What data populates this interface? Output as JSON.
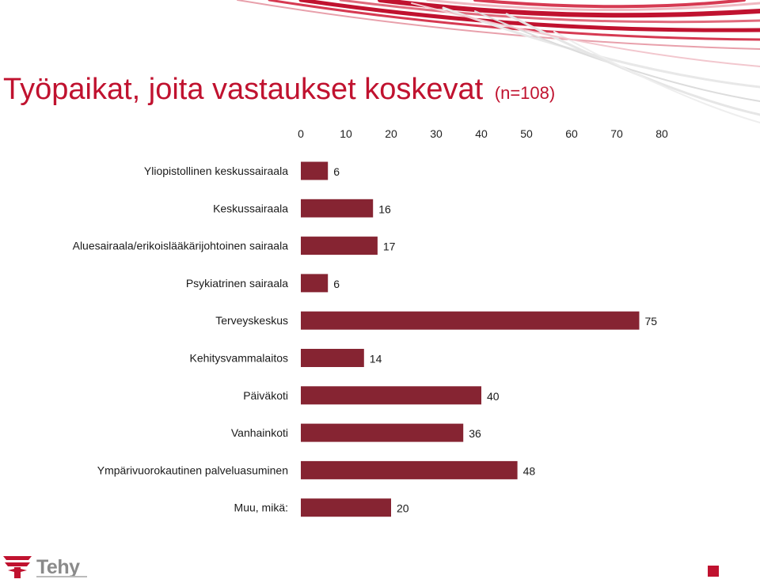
{
  "title": {
    "main": "Työpaikat, joita vastaukset koskevat",
    "n": "(n=108)"
  },
  "brand": {
    "name": "Tehy",
    "accent_color": "#c0122f",
    "bar_color": "#862432"
  },
  "chart_data": {
    "type": "bar",
    "orientation": "horizontal",
    "categories": [
      "Yliopistollinen keskussairaala",
      "Keskussairaala",
      "Aluesairaala/erikoislääkärijohtoinen sairaala",
      "Psykiatrinen sairaala",
      "Terveyskeskus",
      "Kehitysvammalaitos",
      "Päiväkoti",
      "Vanhainkoti",
      "Ympärivuorokautinen palveluasuminen",
      "Muu, mikä:"
    ],
    "values": [
      6,
      16,
      17,
      6,
      75,
      14,
      40,
      36,
      48,
      20
    ],
    "xlim": [
      0,
      80
    ],
    "xticks": [
      0,
      10,
      20,
      30,
      40,
      50,
      60,
      70,
      80
    ],
    "axis_position": "top",
    "grid": false,
    "data_labels": true
  }
}
